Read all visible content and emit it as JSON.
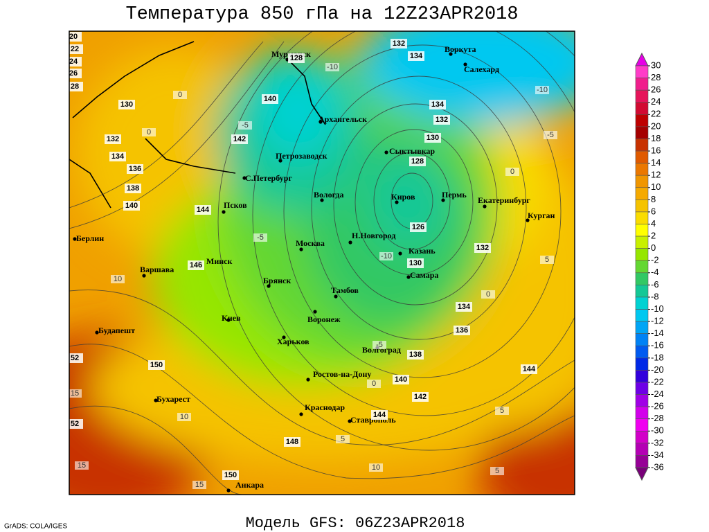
{
  "header": {
    "title": "Температура 850 гПа на 12Z23APR2018"
  },
  "footer": {
    "model": "Модель GFS: 06Z23APR2018",
    "credit": "GrADS: COLA/IGES"
  },
  "cities": [
    "Мурманск",
    "Воркута",
    "Салехард",
    "Архангельск",
    "Петрозаводск",
    "Сыктывкар",
    "С.Петербург",
    "Вологда",
    "Киров",
    "Пермь",
    "Екатеринбург",
    "Курган",
    "Псков",
    "Берлин",
    "Москва",
    "Н.Новгород",
    "Казань",
    "Минск",
    "Варшава",
    "Самара",
    "Брянск",
    "Тамбов",
    "Киев",
    "Воронеж",
    "Будапешт",
    "Харьков",
    "Волгоград",
    "Ростов-на-Дону",
    "Бухарест",
    "Краснодар",
    "Ставрополь",
    "Анкара"
  ],
  "height_labels": [
    132,
    134,
    128,
    140,
    130,
    142,
    132,
    134,
    136,
    138,
    140,
    144,
    146,
    134,
    132,
    130,
    128,
    126,
    130,
    132,
    134,
    136,
    138,
    140,
    142,
    144,
    144,
    148,
    150,
    150,
    20,
    22,
    24,
    26,
    28,
    52,
    52
  ],
  "temp_labels": [
    -10,
    -10,
    0,
    0,
    -5,
    -5,
    0,
    -5,
    -10,
    5,
    10,
    -5,
    0,
    5,
    10,
    5,
    10,
    5,
    15,
    15,
    15,
    0
  ],
  "colorbar": {
    "levels": [
      30,
      28,
      26,
      24,
      22,
      20,
      18,
      16,
      14,
      12,
      10,
      8,
      6,
      4,
      2,
      0,
      -2,
      -4,
      -6,
      -8,
      -10,
      -12,
      -14,
      -16,
      -18,
      -20,
      -22,
      -24,
      -26,
      -28,
      -30,
      -32,
      -34,
      -36
    ],
    "colors": [
      "#e600e6",
      "#ff3cc8",
      "#f01e8c",
      "#e6145a",
      "#d20a32",
      "#be0000",
      "#a50000",
      "#c83200",
      "#e05a00",
      "#eb7800",
      "#f09600",
      "#f5aa00",
      "#f5c300",
      "#fadc00",
      "#ffff00",
      "#c8f000",
      "#96e600",
      "#64d732",
      "#32c864",
      "#14c896",
      "#00d2d2",
      "#00c8f0",
      "#00a5f5",
      "#0082f5",
      "#005af0",
      "#0028e6",
      "#3200dc",
      "#6e00e6",
      "#a000e6",
      "#d200eb",
      "#f000f0",
      "#d200c8",
      "#b400b4",
      "#960096",
      "#780078"
    ]
  }
}
